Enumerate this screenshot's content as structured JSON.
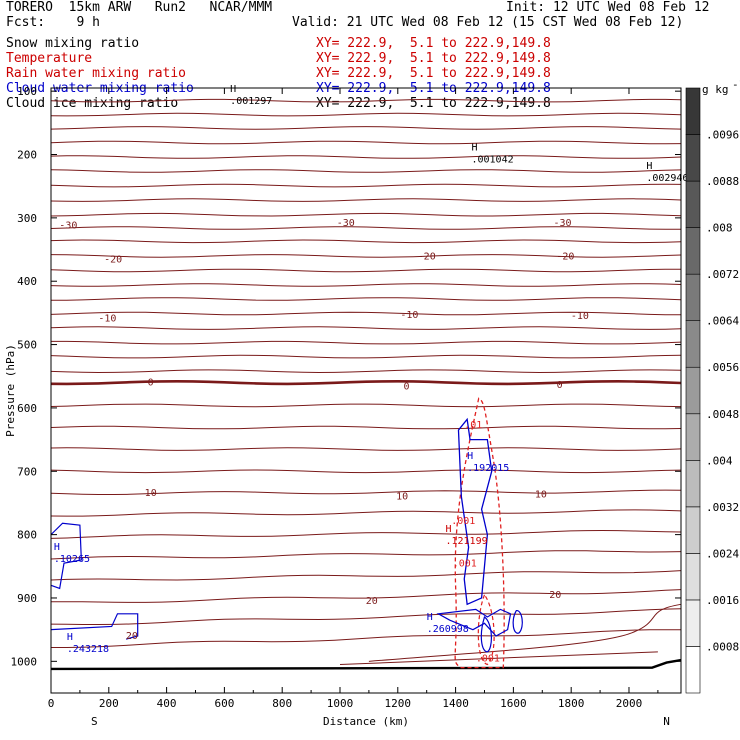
{
  "header": {
    "model_left": "TORERO  15km ARW   Run2   NCAR/MMM",
    "init": "Init: 12 UTC Wed 08 Feb 12",
    "fcst": "Fcst:    9 h",
    "valid": "Valid: 21 UTC Wed 08 Feb 12 (15 CST Wed 08 Feb 12)"
  },
  "legend": [
    {
      "name": "Snow mixing ratio",
      "xy": "XY= 222.9,  5.1 to 222.9,149.8",
      "color": "#000000"
    },
    {
      "name": "Temperature",
      "xy": "XY= 222.9,  5.1 to 222.9,149.8",
      "color": "#cc0000"
    },
    {
      "name": "Rain water mixing ratio",
      "xy": "XY= 222.9,  5.1 to 222.9,149.8",
      "color": "#cc0000"
    },
    {
      "name": "Cloud water mixing ratio",
      "xy": "XY= 222.9,  5.1 to 222.9,149.8",
      "color": "#0000cc"
    },
    {
      "name": "Cloud ice mixing ratio",
      "xy": "XY= 222.9,  5.1 to 222.9,149.8",
      "color": "#000000"
    }
  ],
  "chart_data": {
    "type": "cross-section",
    "xlabel": "Distance (km)",
    "ylabel": "Pressure (hPa)",
    "xlim": [
      0,
      2180
    ],
    "ylim": [
      1050,
      95
    ],
    "x_ticks": [
      0,
      200,
      400,
      600,
      800,
      1000,
      1200,
      1400,
      1600,
      1800,
      2000
    ],
    "y_ticks": [
      100,
      200,
      300,
      400,
      500,
      600,
      700,
      800,
      900,
      1000
    ],
    "left_end_label": "S",
    "right_end_label": "N",
    "colorbar": {
      "units": "g kg",
      "units_exp": "-1",
      "levels": [
        ".0008",
        ".0016",
        ".0024",
        ".0032",
        ".004",
        ".0048",
        ".0056",
        ".0064",
        ".0072",
        ".008",
        ".0088",
        ".0096"
      ]
    },
    "temperature_labels": [
      {
        "text": "-30",
        "x": 60,
        "p": 312
      },
      {
        "text": "-30",
        "x": 1020,
        "p": 308
      },
      {
        "text": "-30",
        "x": 1770,
        "p": 308
      },
      {
        "text": "-20",
        "x": 215,
        "p": 366
      },
      {
        "text": "-20",
        "x": 1300,
        "p": 361
      },
      {
        "text": "-20",
        "x": 1780,
        "p": 361
      },
      {
        "text": "-10",
        "x": 195,
        "p": 459
      },
      {
        "text": "-10",
        "x": 1240,
        "p": 453
      },
      {
        "text": "-10",
        "x": 1830,
        "p": 455
      },
      {
        "text": "0",
        "x": 345,
        "p": 560
      },
      {
        "text": "0",
        "x": 1230,
        "p": 566
      },
      {
        "text": "0",
        "x": 1760,
        "p": 564
      },
      {
        "text": "10",
        "x": 345,
        "p": 734
      },
      {
        "text": "10",
        "x": 1215,
        "p": 740
      },
      {
        "text": "10",
        "x": 1695,
        "p": 737
      },
      {
        "text": "20",
        "x": 1110,
        "p": 905
      },
      {
        "text": "20",
        "x": 1745,
        "p": 895
      },
      {
        "text": "20",
        "x": 280,
        "p": 960
      }
    ],
    "extrema_labels": [
      {
        "text": "H",
        "value": ".001297",
        "x": 620,
        "p": 112,
        "color": "#000000"
      },
      {
        "text": "H",
        "value": ".001042",
        "x": 1455,
        "p": 205,
        "color": "#000000"
      },
      {
        "text": "H",
        "value": ".002946",
        "x": 2060,
        "p": 234,
        "color": "#000000"
      },
      {
        "text": "H",
        "value": ".192015",
        "x": 1440,
        "p": 692,
        "color": "#0000cc"
      },
      {
        "text": "H",
        "value": ".121199",
        "x": 1365,
        "p": 807,
        "color": "#cc0000"
      },
      {
        "text": "H",
        "value": ".260998",
        "x": 1300,
        "p": 946,
        "color": "#0000cc"
      },
      {
        "text": "H",
        "value": ".10265",
        "x": 10,
        "p": 835,
        "color": "#0000cc"
      },
      {
        "text": "H",
        "value": ".243218",
        "x": 55,
        "p": 977,
        "color": "#0000cc"
      }
    ],
    "rain_labels": [
      {
        "text": ".001",
        "x": 1385,
        "p": 783
      },
      {
        "text": ".001",
        "x": 1390,
        "p": 850
      },
      {
        "text": ".001",
        "x": 1470,
        "p": 1000
      },
      {
        "text": ".01",
        "x": 1430,
        "p": 632
      }
    ]
  }
}
